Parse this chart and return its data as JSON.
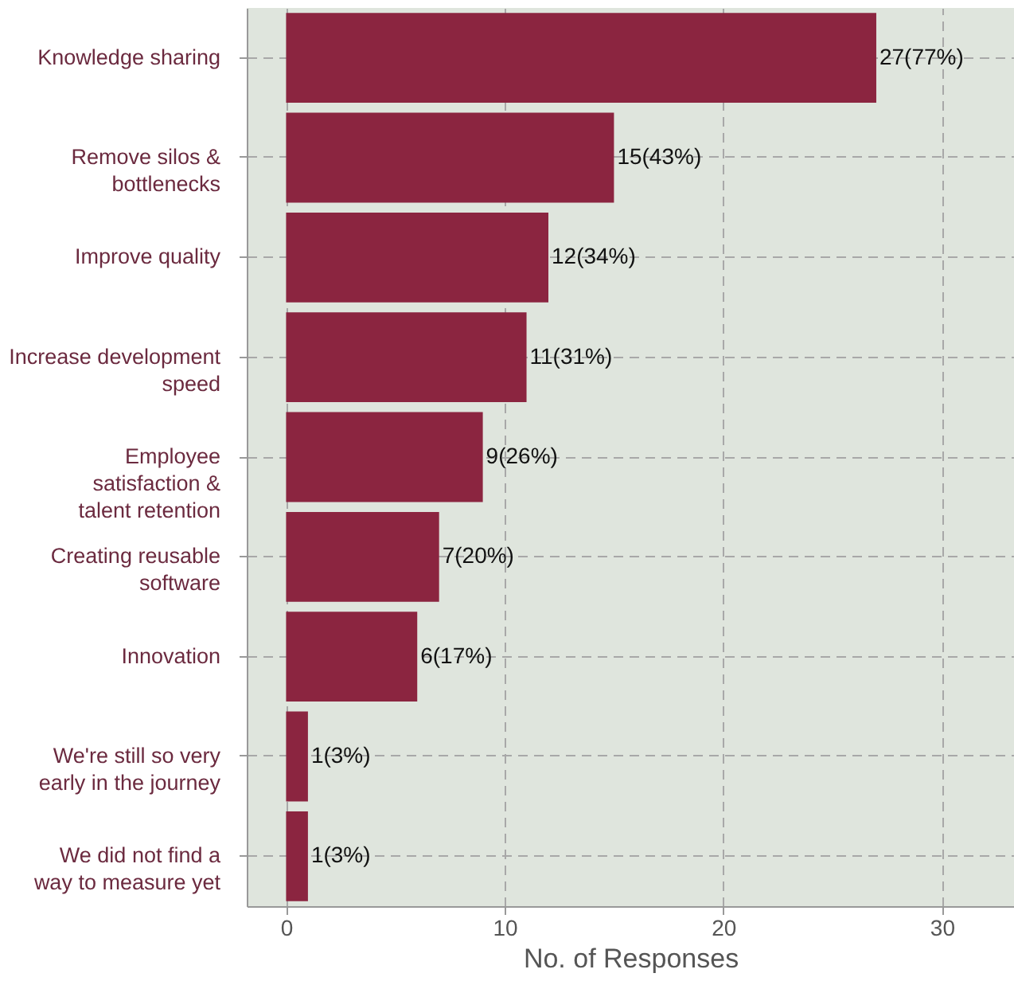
{
  "chart_data": {
    "type": "bar",
    "orientation": "horizontal",
    "xlabel": "No. of Responses",
    "categories": [
      "Knowledge sharing",
      "Remove silos &\nbottlenecks",
      "Improve quality",
      "Increase development\nspeed",
      "Employee\nsatisfaction &\ntalent retention",
      "Creating reusable\nsoftware",
      "Innovation",
      "We're still so very\nearly in the journey",
      "We did not find a\nway to measure yet"
    ],
    "values": [
      27,
      15,
      12,
      11,
      9,
      7,
      6,
      1,
      1
    ],
    "value_labels": [
      "27(77%)",
      "15(43%)",
      "12(34%)",
      "11(31%)",
      "9(26%)",
      "7(20%)",
      "6(17%)",
      "1(3%)",
      "1(3%)"
    ],
    "color": "#8b2540",
    "xlim": [
      -1.8,
      33.3
    ],
    "xticks": [
      0,
      10,
      20,
      30
    ],
    "grid": true
  }
}
